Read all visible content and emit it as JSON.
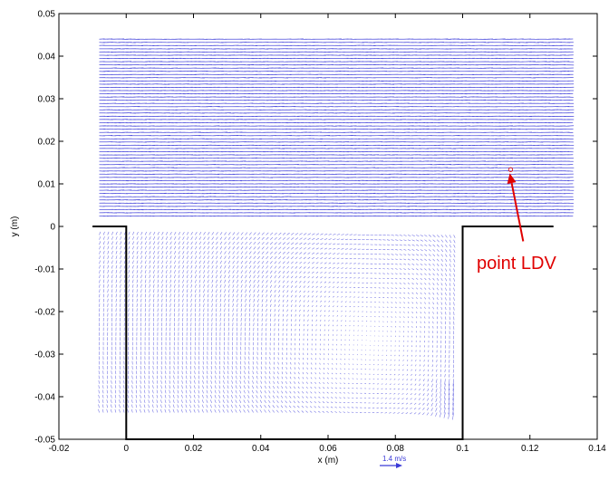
{
  "chart_data": {
    "type": "quiver",
    "title": "",
    "xlabel": "x (m)",
    "ylabel": "y (m)",
    "xlim": [
      -0.02,
      0.14
    ],
    "ylim": [
      -0.05,
      0.05
    ],
    "xticks": [
      -0.02,
      0,
      0.02,
      0.04,
      0.06,
      0.08,
      0.1,
      0.12,
      0.14
    ],
    "xtick_labels": [
      "-0.02",
      "0",
      "0.02",
      "0.04",
      "0.06",
      "0.08",
      "0.1",
      "0.12",
      "0.14"
    ],
    "yticks": [
      -0.05,
      -0.04,
      -0.03,
      -0.02,
      -0.01,
      0,
      0.01,
      0.02,
      0.03,
      0.04,
      0.05
    ],
    "ytick_labels": [
      "-0.05",
      "-0.04",
      "-0.03",
      "-0.02",
      "-0.01",
      "0",
      "0.01",
      "0.02",
      "0.03",
      "0.04",
      "0.05"
    ],
    "grid": false,
    "vector_color": "#3a3ad8",
    "field": {
      "free_stream": {
        "x_range": [
          -0.008,
          0.132
        ],
        "y_range": [
          0.002,
          0.044
        ],
        "direction": "+x",
        "magnitude": "high"
      },
      "cavity": {
        "x_range": [
          -0.008,
          0.098
        ],
        "y_range": [
          -0.044,
          -0.002
        ],
        "flow": "clockwise recirculation",
        "magnitude": "low"
      }
    },
    "cavity_outline": {
      "color": "#000000",
      "points": [
        [
          -0.01,
          0
        ],
        [
          0,
          0
        ],
        [
          0,
          -0.05
        ],
        [
          0.1,
          -0.05
        ],
        [
          0.1,
          0
        ],
        [
          0.127,
          0
        ]
      ]
    },
    "annotations": [
      {
        "text": "point LDV",
        "color": "#e00000",
        "text_at": [
          0.116,
          -0.0085
        ],
        "arrow_from": [
          0.118,
          -0.0035
        ],
        "arrow_to": [
          0.114,
          0.0125
        ]
      }
    ],
    "scale_vector": {
      "label": "1.4  m/s",
      "color": "#3a3ad8"
    }
  }
}
